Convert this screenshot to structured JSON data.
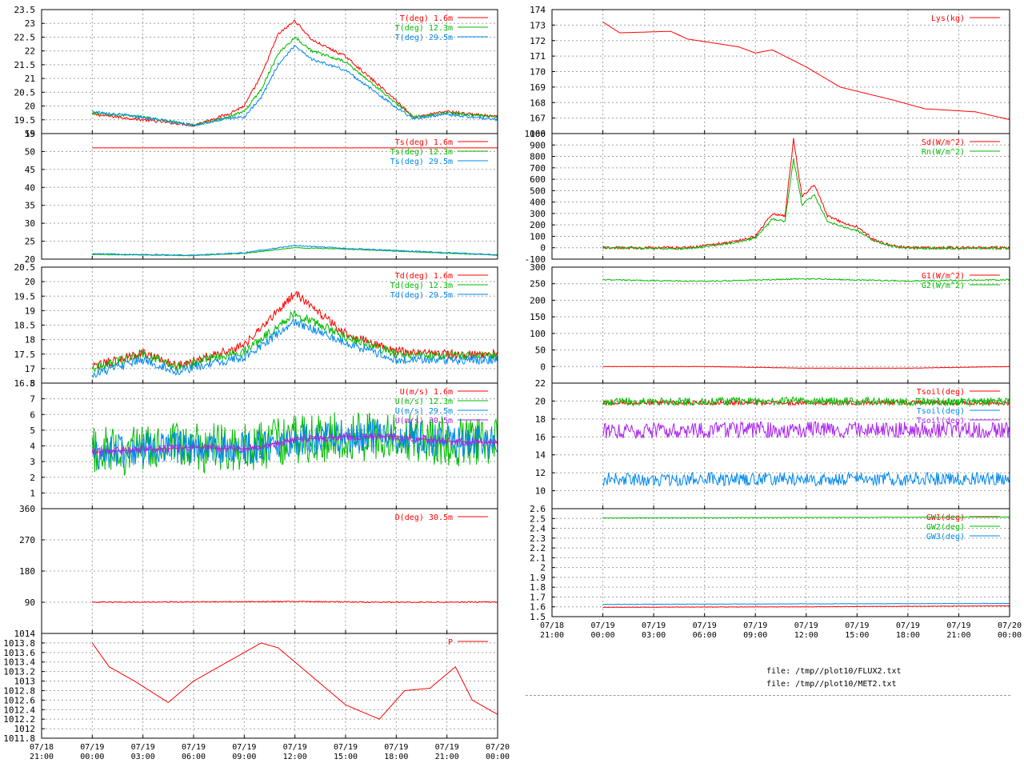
{
  "files": [
    "file: /tmp//plot10/FLUX2.txt",
    "file: /tmp//plot10/MET2.txt"
  ],
  "time_ticks": [
    {
      "date": "07/18",
      "time": "21:00"
    },
    {
      "date": "07/19",
      "time": "00:00"
    },
    {
      "date": "07/19",
      "time": "03:00"
    },
    {
      "date": "07/19",
      "time": "06:00"
    },
    {
      "date": "07/19",
      "time": "09:00"
    },
    {
      "date": "07/19",
      "time": "12:00"
    },
    {
      "date": "07/19",
      "time": "15:00"
    },
    {
      "date": "07/19",
      "time": "18:00"
    },
    {
      "date": "07/19",
      "time": "21:00"
    },
    {
      "date": "07/20",
      "time": "00:00"
    }
  ],
  "colors": {
    "red": "#ff0000",
    "green": "#00bb00",
    "blue": "#0088ee",
    "magenta": "#aa22ee",
    "axis": "#000000",
    "grid": "#a0a0a0"
  },
  "chart_data": [
    {
      "id": "T",
      "type": "line",
      "xlabel": "",
      "ylabel": "",
      "x_range": [
        "07/18 21:00",
        "07/20 00:00"
      ],
      "ylim": [
        19,
        23.5
      ],
      "grid": true,
      "legend": "top-right",
      "yticks": [
        "19",
        "19.5",
        "20",
        "20.5",
        "21",
        "21.5",
        "22",
        "22.5",
        "23",
        "23.5"
      ],
      "x": [
        "07/19 00:00",
        "07/19 03:00",
        "07/19 06:00",
        "07/19 08:00",
        "07/19 09:00",
        "07/19 10:00",
        "07/19 11:00",
        "07/19 12:00",
        "07/19 13:00",
        "07/19 15:00",
        "07/19 18:00",
        "07/19 19:00",
        "07/19 21:00",
        "07/20 00:00"
      ],
      "series": [
        {
          "name": "T(deg)  1.6m",
          "color": "red",
          "noise": 0.05,
          "values": [
            19.7,
            19.5,
            19.3,
            19.7,
            20.0,
            21.1,
            22.6,
            23.1,
            22.4,
            21.8,
            20.2,
            19.6,
            19.8,
            19.6
          ]
        },
        {
          "name": "T(deg) 12.3m",
          "color": "green",
          "noise": 0.05,
          "values": [
            19.75,
            19.6,
            19.3,
            19.6,
            19.8,
            20.6,
            21.9,
            22.5,
            22.0,
            21.6,
            20.1,
            19.6,
            19.75,
            19.6
          ]
        },
        {
          "name": "T(deg) 29.5m",
          "color": "blue",
          "noise": 0.05,
          "values": [
            19.8,
            19.6,
            19.3,
            19.55,
            19.6,
            20.3,
            21.5,
            22.2,
            21.7,
            21.3,
            19.95,
            19.55,
            19.7,
            19.5
          ]
        }
      ]
    },
    {
      "id": "Ts",
      "type": "line",
      "xlabel": "",
      "ylabel": "",
      "x_range": [
        "07/18 21:00",
        "07/20 00:00"
      ],
      "ylim": [
        20,
        55
      ],
      "grid": true,
      "legend": "top-right",
      "yticks": [
        "20",
        "25",
        "30",
        "35",
        "40",
        "45",
        "50",
        "55"
      ],
      "x": [
        "07/19 00:00",
        "07/19 06:00",
        "07/19 09:00",
        "07/19 12:00",
        "07/19 15:00",
        "07/19 18:00",
        "07/20 00:00"
      ],
      "series": [
        {
          "name": "Ts(deg)  1.6m",
          "color": "red",
          "noise": 0,
          "values": [
            51,
            51,
            51,
            51,
            51,
            51,
            51
          ]
        },
        {
          "name": "Ts(deg) 12.3m",
          "color": "green",
          "noise": 0.1,
          "values": [
            21.3,
            21.0,
            21.6,
            23.2,
            22.8,
            22.2,
            21.1
          ]
        },
        {
          "name": "Ts(deg) 29.5m",
          "color": "blue",
          "noise": 0.15,
          "values": [
            21.5,
            21.1,
            21.8,
            23.8,
            23.0,
            22.4,
            21.2
          ]
        }
      ]
    },
    {
      "id": "Td",
      "type": "line",
      "xlabel": "",
      "ylabel": "",
      "x_range": [
        "07/18 21:00",
        "07/20 00:00"
      ],
      "ylim": [
        16.5,
        20.5
      ],
      "grid": true,
      "legend": "top-right",
      "yticks": [
        "16.5",
        "17",
        "17.5",
        "18",
        "18.5",
        "19",
        "19.5",
        "20",
        "20.5"
      ],
      "x": [
        "07/19 00:00",
        "07/19 03:00",
        "07/19 05:00",
        "07/19 09:00",
        "07/19 12:00",
        "07/19 15:00",
        "07/19 18:00",
        "07/19 21:00",
        "07/20 00:00"
      ],
      "series": [
        {
          "name": "Td(deg)  1.6m",
          "color": "red",
          "noise": 0.15,
          "values": [
            17.05,
            17.55,
            17.1,
            17.8,
            19.6,
            18.2,
            17.6,
            17.5,
            17.5
          ]
        },
        {
          "name": "Td(deg) 12.3m",
          "color": "green",
          "noise": 0.15,
          "values": [
            17.0,
            17.5,
            17.05,
            17.6,
            18.9,
            18.1,
            17.5,
            17.45,
            17.45
          ]
        },
        {
          "name": "Td(deg) 29.5m",
          "color": "blue",
          "noise": 0.15,
          "values": [
            16.8,
            17.3,
            16.9,
            17.4,
            18.6,
            17.9,
            17.3,
            17.3,
            17.3
          ]
        }
      ]
    },
    {
      "id": "U",
      "type": "line",
      "xlabel": "",
      "ylabel": "",
      "x_range": [
        "07/18 21:00",
        "07/20 00:00"
      ],
      "ylim": [
        0,
        8
      ],
      "grid": true,
      "legend": "top-right",
      "yticks": [
        "1",
        "2",
        "3",
        "4",
        "5",
        "6",
        "7",
        "8"
      ],
      "x": [
        "07/19 00:00",
        "07/19 06:00",
        "07/19 09:00",
        "07/19 12:00",
        "07/19 15:00",
        "07/19 18:00",
        "07/19 21:00",
        "07/20 00:00"
      ],
      "series": [
        {
          "name": "U(m/s)  1.6m",
          "color": "red",
          "noise": 0,
          "values": [
            3.6,
            3.9,
            3.8,
            4.4,
            4.6,
            4.6,
            4.3,
            4.2
          ]
        },
        {
          "name": "U(m/s) 12.3m",
          "color": "green",
          "noise": 1.6,
          "values": [
            3.6,
            3.9,
            3.8,
            4.4,
            4.6,
            4.6,
            4.3,
            4.2
          ]
        },
        {
          "name": "U(m/s) 29.5m",
          "color": "blue",
          "noise": 1.1,
          "values": [
            3.6,
            3.9,
            3.8,
            4.4,
            4.6,
            4.6,
            4.3,
            4.2
          ]
        },
        {
          "name": "U(m/s) 30.5m",
          "color": "magenta",
          "noise": 0.25,
          "values": [
            3.6,
            3.9,
            3.8,
            4.4,
            4.6,
            4.6,
            4.3,
            4.2
          ]
        }
      ]
    },
    {
      "id": "D",
      "type": "line",
      "xlabel": "",
      "ylabel": "",
      "x_range": [
        "07/18 21:00",
        "07/20 00:00"
      ],
      "ylim": [
        0,
        360
      ],
      "grid": true,
      "legend": "top-right",
      "yticks": [
        "90",
        "180",
        "270",
        "360"
      ],
      "x": [
        "07/19 00:00",
        "07/19 06:00",
        "07/19 12:00",
        "07/19 18:00",
        "07/20 00:00"
      ],
      "series": [
        {
          "name": "D(deg)  30.5m",
          "color": "red",
          "noise": 1.5,
          "values": [
            90,
            91,
            92,
            90,
            91
          ]
        }
      ]
    },
    {
      "id": "P",
      "type": "line",
      "xlabel": "",
      "ylabel": "",
      "x_range": [
        "07/18 21:00",
        "07/20 00:00"
      ],
      "ylim": [
        1011.8,
        1014
      ],
      "grid": true,
      "legend": "top-right",
      "yticks": [
        "1011.8",
        "1012",
        "1012.2",
        "1012.4",
        "1012.6",
        "1012.8",
        "1013",
        "1013.2",
        "1013.4",
        "1013.6",
        "1013.8",
        "1014"
      ],
      "x": [
        "07/19 00:00",
        "07/19 01:00",
        "07/19 02:30",
        "07/19 04:30",
        "07/19 06:00",
        "07/19 08:00",
        "07/19 10:00",
        "07/19 11:00",
        "07/19 13:00",
        "07/19 15:00",
        "07/19 17:00",
        "07/19 18:30",
        "07/19 20:00",
        "07/19 21:30",
        "07/19 22:30",
        "07/20 00:00"
      ],
      "series": [
        {
          "name": "P",
          "color": "red",
          "noise": 0,
          "values": [
            1013.8,
            1013.3,
            1013.0,
            1012.55,
            1013.0,
            1013.4,
            1013.8,
            1013.7,
            1013.1,
            1012.5,
            1012.2,
            1012.8,
            1012.85,
            1013.3,
            1012.6,
            1012.3
          ]
        }
      ]
    },
    {
      "id": "Lys",
      "type": "line",
      "xlabel": "",
      "ylabel": "",
      "x_range": [
        "07/18 21:00",
        "07/20 00:00"
      ],
      "ylim": [
        166,
        174
      ],
      "grid": true,
      "legend": "top-right",
      "yticks": [
        "166",
        "167",
        "168",
        "169",
        "170",
        "171",
        "172",
        "173",
        "174"
      ],
      "x": [
        "07/19 00:00",
        "07/19 01:00",
        "07/19 04:00",
        "07/19 05:00",
        "07/19 08:00",
        "07/19 09:00",
        "07/19 10:00",
        "07/19 12:00",
        "07/19 14:00",
        "07/19 17:00",
        "07/19 19:00",
        "07/19 22:00",
        "07/20 00:00"
      ],
      "series": [
        {
          "name": "Lys(kg)",
          "color": "red",
          "noise": 0,
          "values": [
            173.2,
            172.5,
            172.6,
            172.1,
            171.6,
            171.2,
            171.4,
            170.3,
            169.0,
            168.2,
            167.6,
            167.4,
            166.9
          ]
        }
      ]
    },
    {
      "id": "Rad",
      "type": "line",
      "xlabel": "",
      "ylabel": "",
      "x_range": [
        "07/18 21:00",
        "07/20 00:00"
      ],
      "ylim": [
        -100,
        1000
      ],
      "grid": true,
      "legend": "top-right",
      "yticks": [
        "-100",
        "0",
        "100",
        "200",
        "300",
        "400",
        "500",
        "600",
        "700",
        "800",
        "900",
        "1000"
      ],
      "x": [
        "07/19 00:00",
        "07/19 05:00",
        "07/19 06:00",
        "07/19 08:00",
        "07/19 09:00",
        "07/19 10:00",
        "07/19 10:45",
        "07/19 11:15",
        "07/19 11:45",
        "07/19 12:30",
        "07/19 13:15",
        "07/19 14:00",
        "07/19 15:00",
        "07/19 16:00",
        "07/19 17:00",
        "07/19 18:00",
        "07/20 00:00"
      ],
      "series": [
        {
          "name": "Sd(W/m^2)",
          "color": "red",
          "noise": 12,
          "values": [
            0,
            0,
            15,
            60,
            100,
            300,
            280,
            950,
            450,
            550,
            280,
            230,
            180,
            70,
            20,
            0,
            0
          ]
        },
        {
          "name": "Rn(W/m^2)",
          "color": "green",
          "noise": 10,
          "values": [
            0,
            -10,
            10,
            50,
            85,
            250,
            230,
            780,
            380,
            460,
            230,
            190,
            150,
            60,
            15,
            -5,
            -5
          ]
        }
      ]
    },
    {
      "id": "G",
      "type": "line",
      "xlabel": "",
      "ylabel": "",
      "x_range": [
        "07/18 21:00",
        "07/20 00:00"
      ],
      "ylim": [
        -50,
        300
      ],
      "grid": true,
      "legend": "top-right",
      "yticks": [
        "0",
        "50",
        "100",
        "150",
        "200",
        "250",
        "300"
      ],
      "x": [
        "07/19 00:00",
        "07/19 06:00",
        "07/19 12:00",
        "07/19 18:00",
        "07/20 00:00"
      ],
      "series": [
        {
          "name": "G1(W/m^2)",
          "color": "red",
          "noise": 0.5,
          "values": [
            0,
            0,
            -5,
            -5,
            0
          ]
        },
        {
          "name": "G2(W/m^2)",
          "color": "green",
          "noise": 2,
          "values": [
            262,
            257,
            265,
            258,
            262
          ]
        }
      ]
    },
    {
      "id": "Tsoil",
      "type": "line",
      "xlabel": "",
      "ylabel": "",
      "x_range": [
        "07/18 21:00",
        "07/20 00:00"
      ],
      "ylim": [
        8,
        22
      ],
      "grid": true,
      "legend": "top-right",
      "yticks": [
        "10",
        "12",
        "14",
        "16",
        "18",
        "20",
        "22"
      ],
      "x": [
        "07/19 00:00",
        "07/19 12:00",
        "07/20 00:00"
      ],
      "series": [
        {
          "name": "Tsoil(deg)",
          "color": "red",
          "noise": 0.25,
          "values": [
            19.8,
            19.8,
            19.8
          ]
        },
        {
          "name": "Tsoil(deg)",
          "color": "green",
          "noise": 0.45,
          "values": [
            19.9,
            20.0,
            19.9
          ]
        },
        {
          "name": "Tsoil(deg)",
          "color": "blue",
          "noise": 0.75,
          "values": [
            11.3,
            11.3,
            11.3
          ]
        },
        {
          "name": "Tsoil(deg)",
          "color": "magenta",
          "noise": 0.9,
          "values": [
            16.7,
            16.8,
            16.8
          ]
        }
      ]
    },
    {
      "id": "GW",
      "type": "line",
      "xlabel": "",
      "ylabel": "",
      "x_range": [
        "07/18 21:00",
        "07/20 00:00"
      ],
      "ylim": [
        1.5,
        2.6
      ],
      "grid": true,
      "legend": "top-right",
      "yticks": [
        "1.5",
        "1.6",
        "1.7",
        "1.8",
        "1.9",
        "2",
        "2.1",
        "2.2",
        "2.3",
        "2.4",
        "2.5",
        "2.6"
      ],
      "x": [
        "07/19 00:00",
        "07/19 12:00",
        "07/20 00:00"
      ],
      "series": [
        {
          "name": "GW1(deg)",
          "color": "red",
          "noise": 0.002,
          "values": [
            1.595,
            1.6,
            1.61
          ]
        },
        {
          "name": "GW2(deg)",
          "color": "green",
          "noise": 0.002,
          "values": [
            2.505,
            2.51,
            2.515
          ]
        },
        {
          "name": "GW3(deg)",
          "color": "blue",
          "noise": 0.002,
          "values": [
            1.625,
            1.63,
            1.635
          ]
        }
      ]
    }
  ]
}
